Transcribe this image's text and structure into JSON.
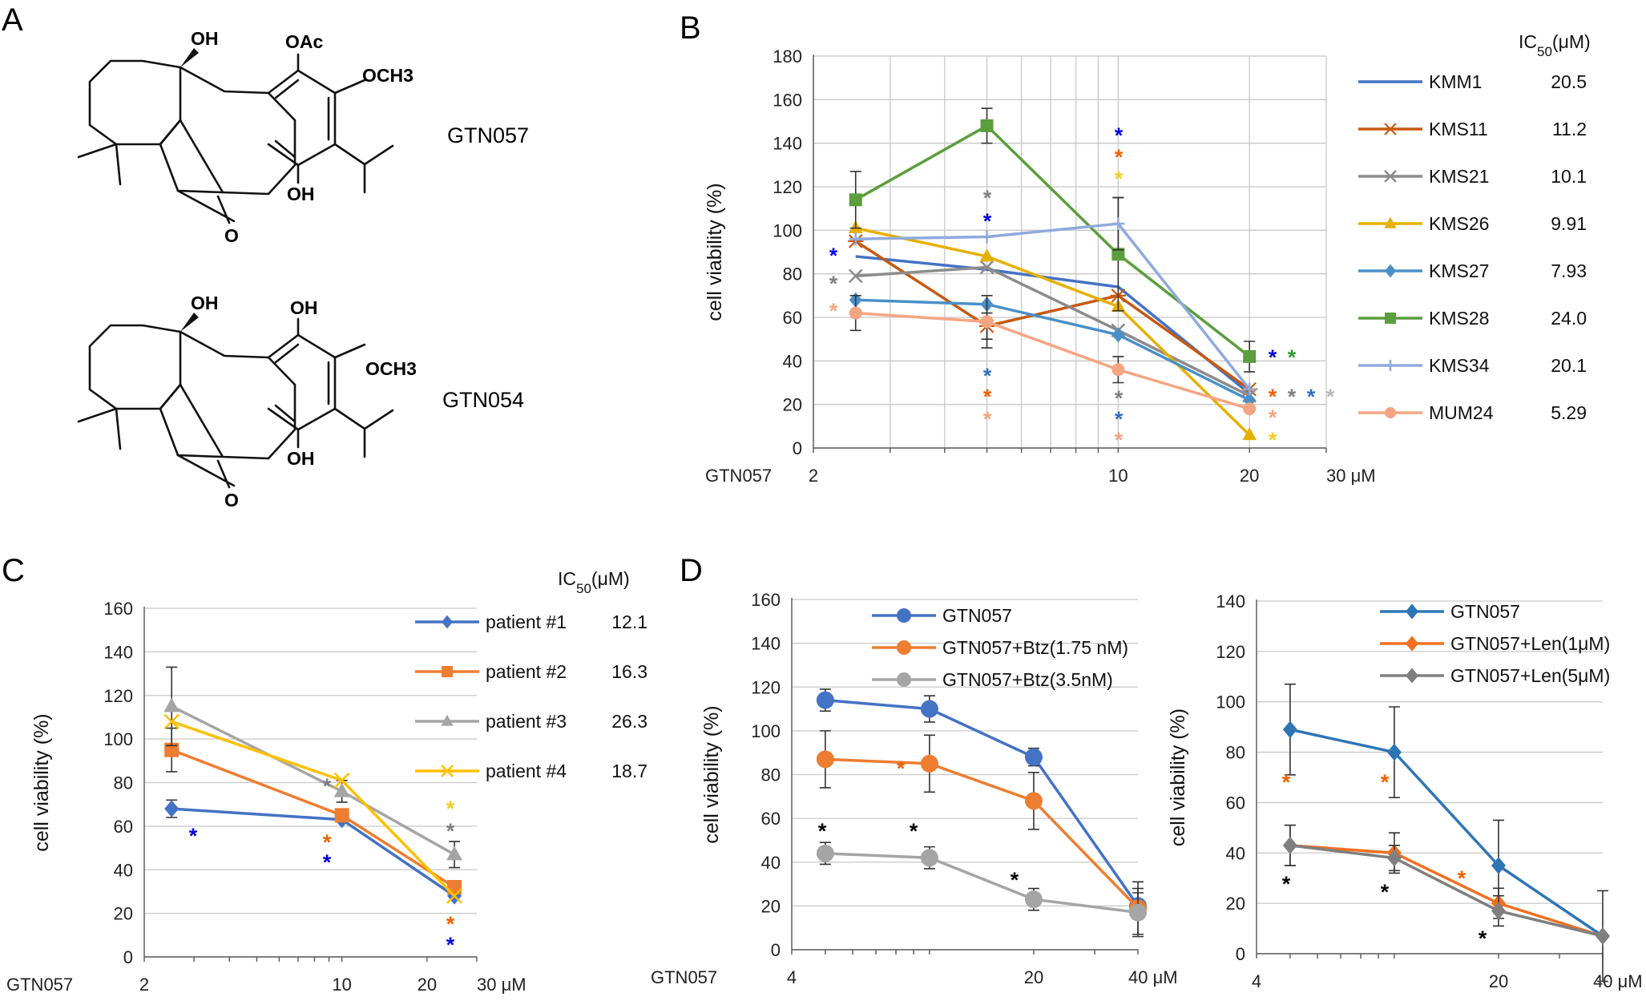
{
  "panel_labels": [
    "A",
    "B",
    "C",
    "D"
  ],
  "compounds": [
    {
      "name": "GTN057",
      "labels": [
        "OH",
        "OAc",
        "OCH3",
        "OH",
        "O"
      ]
    },
    {
      "name": "GTN054",
      "labels": [
        "OH",
        "OH",
        "OCH3",
        "OH",
        "O"
      ]
    }
  ],
  "colors": {
    "KMM1": "#4472c4",
    "KMS11": "#c55a11",
    "KMS21": "#8c8c8c",
    "KMS26": "#e6b000",
    "KMS27": "#4a90c8",
    "KMS28": "#5b9e3d",
    "KMS34": "#8faadc",
    "MUM24": "#f4a582",
    "p1": "#4472c4",
    "p2": "#ed7d31",
    "p3": "#a5a5a5",
    "p4": "#ffc000",
    "d_blue": "#4472c4",
    "d_orange": "#ed7d31",
    "d_gray": "#a5a5a5",
    "e_blue": "#2e75b6",
    "e_orange": "#f07020",
    "e_gray": "#7f7f7f",
    "star_blue": "#0000e0",
    "star_orange": "#f06000",
    "star_yellow": "#f0d020",
    "star_gray": "#7f7f7f",
    "star_lightblue": "#3070c0",
    "star_salmon": "#f4a582",
    "star_green": "#2e9e2e",
    "star_silver": "#b8b8b8",
    "star_black": "#000000"
  },
  "chart_data": [
    {
      "id": "B",
      "type": "line",
      "ylabel": "cell viability (%)",
      "x_prefix": "GTN057",
      "xscale": "log",
      "xlim": [
        2,
        30
      ],
      "ylim": [
        0,
        180
      ],
      "yticks": [
        "0",
        "20",
        "40",
        "60",
        "80",
        "100",
        "120",
        "140",
        "160",
        "180"
      ],
      "xticks": [
        "2",
        "10",
        "20",
        "30 μM"
      ],
      "legend_header": "IC50(μM)",
      "x": [
        2.5,
        5,
        10,
        20
      ],
      "series": [
        {
          "name": "KMM1",
          "ic50": "20.5",
          "color": "#4472c4",
          "marker": "none",
          "values": [
            88,
            82,
            74,
            25
          ],
          "err": [
            0,
            0,
            0,
            0
          ]
        },
        {
          "name": "KMS11",
          "ic50": "11.2",
          "color": "#c55a11",
          "marker": "asterisk",
          "values": [
            95,
            56,
            70,
            27
          ],
          "err": [
            0,
            6,
            0,
            0
          ]
        },
        {
          "name": "KMS21",
          "ic50": "10.1",
          "color": "#8c8c8c",
          "marker": "x",
          "values": [
            79,
            83,
            54,
            24
          ],
          "err": [
            0,
            0,
            0,
            0
          ]
        },
        {
          "name": "KMS26",
          "ic50": "9.91",
          "color": "#e6b000",
          "marker": "triangle",
          "values": [
            101,
            88,
            65,
            6
          ],
          "err": [
            0,
            0,
            0,
            0
          ]
        },
        {
          "name": "KMS27",
          "ic50": "7.93",
          "color": "#4a90c8",
          "marker": "diamond",
          "values": [
            68,
            66,
            52,
            22
          ],
          "err": [
            0,
            0,
            0,
            0
          ]
        },
        {
          "name": "KMS28",
          "ic50": "24.0",
          "color": "#5b9e3d",
          "marker": "square",
          "values": [
            114,
            148,
            89,
            42
          ],
          "err": [
            13,
            8,
            26,
            7
          ]
        },
        {
          "name": "KMS34",
          "ic50": "20.1",
          "color": "#8faadc",
          "marker": "plus",
          "values": [
            96,
            97,
            103,
            27
          ],
          "err": [
            0,
            0,
            12,
            0
          ]
        },
        {
          "name": "MUM24",
          "ic50": "5.29",
          "color": "#f4a582",
          "marker": "circle",
          "values": [
            62,
            58,
            36,
            18
          ],
          "err": [
            8,
            12,
            6,
            0
          ]
        }
      ],
      "annotations": "*"
    },
    {
      "id": "C",
      "type": "line",
      "ylabel": "cell viability (%)",
      "x_prefix": "GTN057",
      "xscale": "log",
      "xlim": [
        2,
        30
      ],
      "ylim": [
        0,
        160
      ],
      "yticks": [
        "0",
        "20",
        "40",
        "60",
        "80",
        "100",
        "120",
        "140",
        "160"
      ],
      "xticks": [
        "2",
        "10",
        "20",
        "30 μM"
      ],
      "legend_header": "IC50(μM)",
      "x": [
        2.5,
        10,
        25
      ],
      "series": [
        {
          "name": "patient #1",
          "ic50": "12.1",
          "color": "#4472c4",
          "marker": "diamond",
          "values": [
            68,
            63,
            28
          ],
          "err": [
            4,
            0,
            0
          ]
        },
        {
          "name": "patient #2",
          "ic50": "16.3",
          "color": "#ed7d31",
          "marker": "square",
          "values": [
            95,
            65,
            32
          ],
          "err": [
            10,
            0,
            0
          ]
        },
        {
          "name": "patient #3",
          "ic50": "26.3",
          "color": "#a5a5a5",
          "marker": "triangle",
          "values": [
            115,
            76,
            47
          ],
          "err": [
            18,
            5,
            6
          ]
        },
        {
          "name": "patient #4",
          "ic50": "18.7",
          "color": "#ffc000",
          "marker": "x",
          "values": [
            108,
            81,
            28
          ],
          "err": [
            0,
            0,
            0
          ]
        }
      ],
      "annotations": "*"
    },
    {
      "id": "D1",
      "type": "line",
      "ylabel": "cell viability (%)",
      "x_prefix": "GTN057",
      "xscale": "log",
      "xlim": [
        4,
        40
      ],
      "ylim": [
        0,
        160
      ],
      "yticks": [
        "0",
        "20",
        "40",
        "60",
        "80",
        "100",
        "120",
        "140",
        "160"
      ],
      "xticks": [
        "4",
        "20",
        "40 μM"
      ],
      "x": [
        5,
        10,
        20,
        40
      ],
      "series": [
        {
          "name": "GTN057",
          "color": "#4472c4",
          "marker": "circle",
          "values": [
            114,
            110,
            88,
            20
          ],
          "err": [
            5,
            6,
            4,
            6
          ]
        },
        {
          "name": "GTN057+Btz(1.75 nM)",
          "color": "#ed7d31",
          "marker": "circle",
          "values": [
            87,
            85,
            68,
            19
          ],
          "err": [
            13,
            13,
            13,
            12
          ]
        },
        {
          "name": "GTN057+Btz(3.5nM)",
          "color": "#a5a5a5",
          "marker": "circle",
          "values": [
            44,
            42,
            23,
            17
          ],
          "err": [
            5,
            5,
            5,
            11
          ]
        }
      ],
      "annotations": "*"
    },
    {
      "id": "D2",
      "type": "line",
      "ylabel": "cell viability (%)",
      "xscale": "log",
      "xlim": [
        4,
        40
      ],
      "ylim": [
        0,
        140
      ],
      "yticks": [
        "0",
        "20",
        "40",
        "60",
        "80",
        "100",
        "120",
        "140"
      ],
      "xticks": [
        "4",
        "20",
        "40 μM"
      ],
      "x": [
        5,
        10,
        20,
        40
      ],
      "series": [
        {
          "name": "GTN057",
          "color": "#2e75b6",
          "marker": "diamond",
          "values": [
            89,
            80,
            35,
            7
          ],
          "err": [
            18,
            18,
            18,
            18
          ]
        },
        {
          "name": "GTN057+Len(1μM)",
          "color": "#f07020",
          "marker": "diamond",
          "values": [
            43,
            40,
            20,
            7
          ],
          "err": [
            8,
            8,
            6,
            0
          ]
        },
        {
          "name": "GTN057+Len(5μM)",
          "color": "#7f7f7f",
          "marker": "diamond",
          "values": [
            43,
            38,
            17,
            7
          ],
          "err": [
            8,
            5,
            6,
            0
          ]
        }
      ],
      "annotations": "*"
    }
  ]
}
